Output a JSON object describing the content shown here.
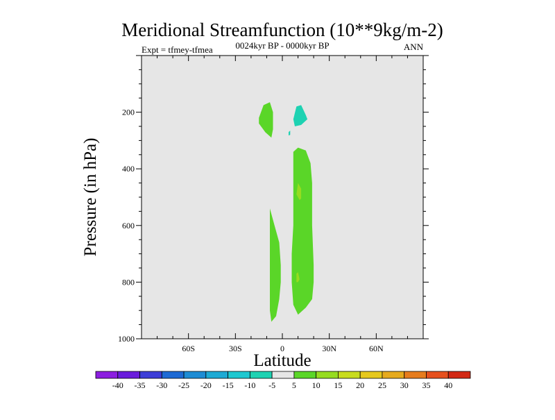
{
  "chart_data": {
    "type": "contour",
    "title": "Meridional Streamfunction (10**9kg/m-2)",
    "left_label": "Expt = tfmey-tfmea",
    "center_label": "0024kyr BP - 0000kyr BP",
    "right_label": "ANN",
    "xlabel": "Latitude",
    "ylabel": "Pressure (in hPa)",
    "xlim": [
      -90,
      90
    ],
    "ylim": [
      1000,
      0
    ],
    "x_ticks": [
      {
        "value": -60,
        "label": "60S"
      },
      {
        "value": -30,
        "label": "30S"
      },
      {
        "value": 0,
        "label": "0"
      },
      {
        "value": 30,
        "label": "30N"
      },
      {
        "value": 60,
        "label": "60N"
      }
    ],
    "y_ticks": [
      {
        "value": 200,
        "label": "200"
      },
      {
        "value": 400,
        "label": "400"
      },
      {
        "value": 600,
        "label": "600"
      },
      {
        "value": 800,
        "label": "800"
      },
      {
        "value": 1000,
        "label": "1000"
      }
    ],
    "background_color": "#e6e6e6",
    "regions": [
      {
        "level": "5 to 10",
        "color": "#5ad628",
        "points": [
          [
            -15,
            220
          ],
          [
            -12,
            175
          ],
          [
            -8,
            165
          ],
          [
            -6,
            200
          ],
          [
            -6,
            260
          ],
          [
            -7,
            290
          ],
          [
            -11,
            270
          ],
          [
            -15,
            240
          ]
        ]
      },
      {
        "level": "-10 to -5",
        "color": "#1ed2b2",
        "points": [
          [
            9,
            180
          ],
          [
            12,
            175
          ],
          [
            15,
            210
          ],
          [
            16,
            225
          ],
          [
            12,
            245
          ],
          [
            8,
            250
          ],
          [
            7,
            225
          ]
        ]
      },
      {
        "level": "-10 to -5",
        "color": "#1ed2b2",
        "points": [
          [
            4,
            270
          ],
          [
            5,
            265
          ],
          [
            5,
            280
          ],
          [
            4,
            282
          ]
        ]
      },
      {
        "level": "5 to 10",
        "color": "#5ad628",
        "points": [
          [
            -8,
            540
          ],
          [
            -5,
            600
          ],
          [
            -2,
            660
          ],
          [
            -1,
            740
          ],
          [
            -1,
            800
          ],
          [
            -2,
            860
          ],
          [
            -4,
            920
          ],
          [
            -7,
            940
          ],
          [
            -8,
            900
          ]
        ]
      },
      {
        "level": "5 to 10",
        "color": "#5ad628",
        "points": [
          [
            7,
            340
          ],
          [
            10,
            325
          ],
          [
            15,
            335
          ],
          [
            18,
            380
          ],
          [
            19,
            450
          ],
          [
            19,
            600
          ],
          [
            20,
            740
          ],
          [
            20,
            800
          ],
          [
            19,
            860
          ],
          [
            15,
            890
          ],
          [
            10,
            915
          ],
          [
            7,
            880
          ],
          [
            6,
            800
          ],
          [
            6,
            700
          ],
          [
            7,
            600
          ],
          [
            7,
            400
          ]
        ]
      },
      {
        "level": "10 to 15",
        "color": "#96dc20",
        "points": [
          [
            10,
            450
          ],
          [
            12,
            470
          ],
          [
            12,
            505
          ],
          [
            11,
            510
          ],
          [
            9,
            490
          ]
        ]
      },
      {
        "level": "10 to 15",
        "color": "#96dc20",
        "points": [
          [
            9,
            770
          ],
          [
            10,
            765
          ],
          [
            11,
            790
          ],
          [
            10,
            800
          ],
          [
            9,
            800
          ]
        ]
      }
    ],
    "colorbar": {
      "labels": [
        "-40",
        "-35",
        "-30",
        "-25",
        "-20",
        "-15",
        "-10",
        "-5",
        "5",
        "10",
        "15",
        "20",
        "25",
        "30",
        "35",
        "40"
      ],
      "colors": [
        "#8c1ee0",
        "#6a1cdc",
        "#3d3ed8",
        "#1e6ad4",
        "#1e8cd4",
        "#1eaad4",
        "#1ec8d0",
        "#1ed2b2",
        "#e6e6e6",
        "#5ad628",
        "#96dc20",
        "#c8dc1e",
        "#e6c81e",
        "#e6aa1e",
        "#e67c1e",
        "#e6501e",
        "#d22814"
      ]
    }
  }
}
